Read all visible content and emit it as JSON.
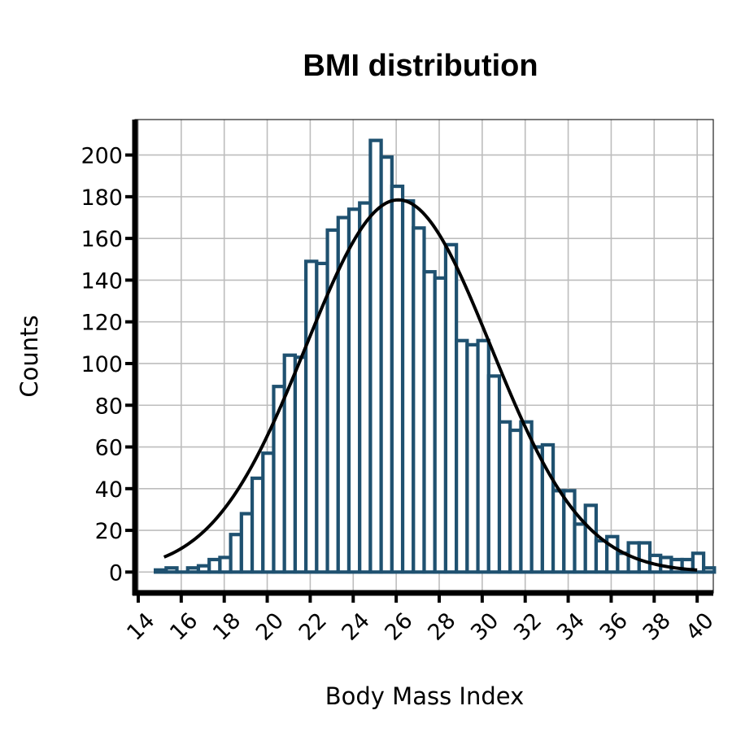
{
  "chart_data": {
    "type": "bar",
    "title": "BMI distribution",
    "xlabel": "Body Mass Index",
    "ylabel": "Counts",
    "xlim": [
      13.85,
      40.75
    ],
    "ylim": [
      -10,
      217
    ],
    "x_ticks": [
      14,
      16,
      18,
      20,
      22,
      24,
      26,
      28,
      30,
      32,
      34,
      36,
      38,
      40
    ],
    "y_ticks": [
      0,
      20,
      40,
      60,
      80,
      100,
      120,
      140,
      160,
      180,
      200
    ],
    "grid": true,
    "histogram": {
      "bin_start": 14.8,
      "bin_width": 0.5,
      "counts": [
        1,
        2,
        0,
        2,
        3,
        6,
        7,
        18,
        28,
        45,
        57,
        89,
        104,
        103,
        149,
        148,
        164,
        170,
        174,
        177,
        207,
        199,
        185,
        178,
        165,
        144,
        141,
        157,
        111,
        109,
        111,
        94,
        72,
        68,
        72,
        60,
        61,
        39,
        39,
        23,
        32,
        15,
        17,
        9,
        14,
        14,
        8,
        7,
        6,
        6,
        9,
        2
      ],
      "edge_color": "#1f5170",
      "fill_color": "#ffffff"
    },
    "fit_curve": {
      "type": "normal",
      "mean": 26.1,
      "sd": 4.3,
      "peak": 178.5,
      "x_range": [
        15.2,
        40.0
      ],
      "color": "#000000"
    }
  }
}
